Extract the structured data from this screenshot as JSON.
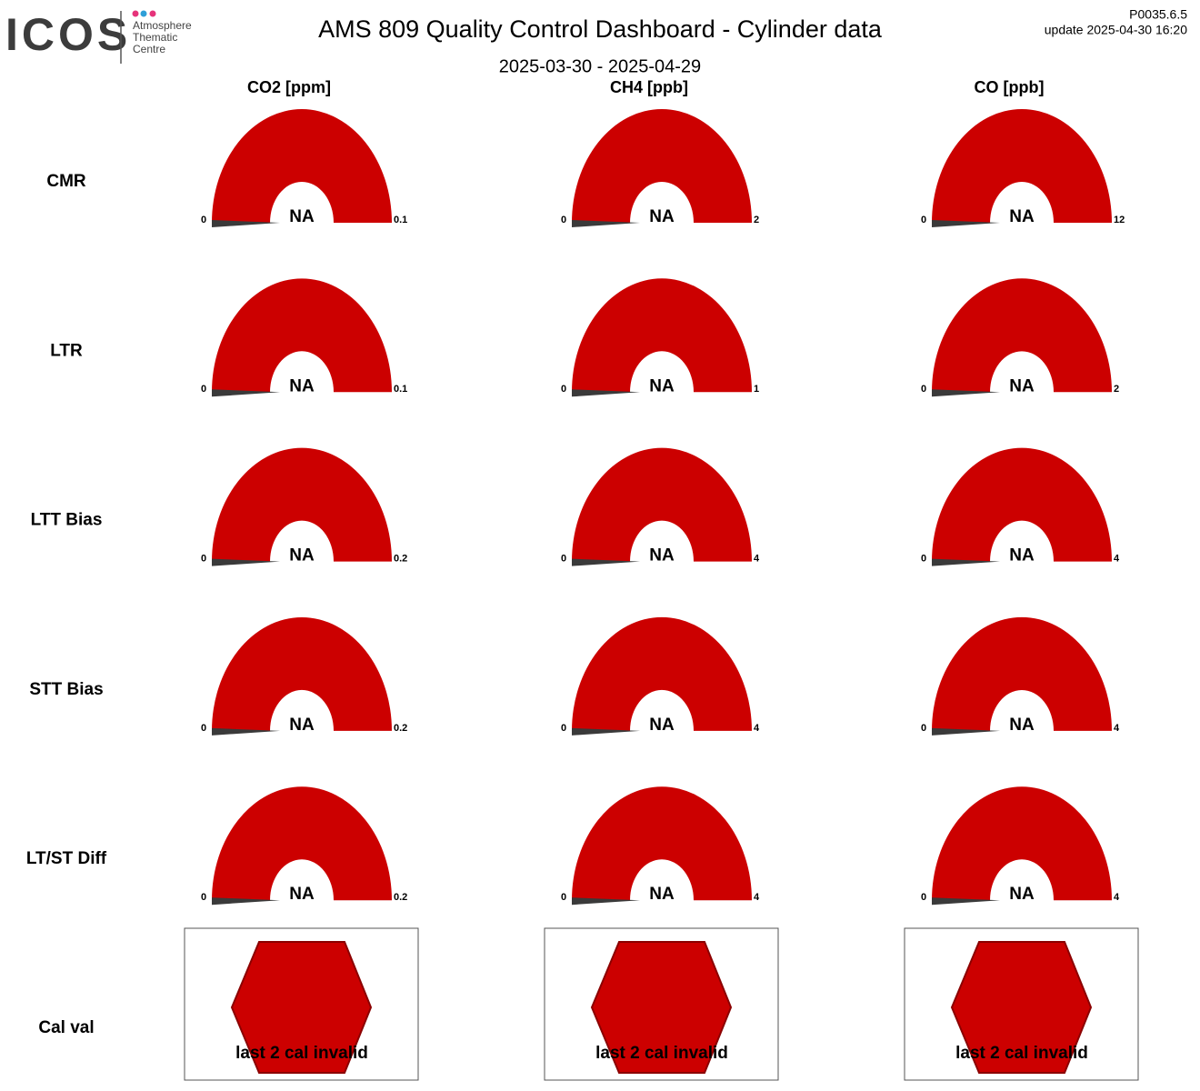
{
  "logo": {
    "name": "ICOS",
    "lines": [
      "Atmosphere",
      "Thematic",
      "Centre"
    ]
  },
  "header": {
    "title": "AMS 809 Quality Control Dashboard - Cylinder data",
    "period": "2025-03-30 - 2025-04-29",
    "version": "P0035.6.5",
    "update": "update  2025-04-30 16:20"
  },
  "columns": [
    "CO2 [ppm]",
    "CH4 [ppb]",
    "CO [ppb]"
  ],
  "rows": [
    {
      "label": "CMR",
      "gauges": [
        {
          "min": 0,
          "max": 0.1,
          "value": "NA"
        },
        {
          "min": 0,
          "max": 2,
          "value": "NA"
        },
        {
          "min": 0,
          "max": 12,
          "value": "NA"
        }
      ]
    },
    {
      "label": "LTR",
      "gauges": [
        {
          "min": 0,
          "max": 0.1,
          "value": "NA"
        },
        {
          "min": 0,
          "max": 1,
          "value": "NA"
        },
        {
          "min": 0,
          "max": 2,
          "value": "NA"
        }
      ]
    },
    {
      "label": "LTT Bias",
      "gauges": [
        {
          "min": 0,
          "max": 0.2,
          "value": "NA"
        },
        {
          "min": 0,
          "max": 4,
          "value": "NA"
        },
        {
          "min": 0,
          "max": 4,
          "value": "NA"
        }
      ]
    },
    {
      "label": "STT Bias",
      "gauges": [
        {
          "min": 0,
          "max": 0.2,
          "value": "NA"
        },
        {
          "min": 0,
          "max": 4,
          "value": "NA"
        },
        {
          "min": 0,
          "max": 4,
          "value": "NA"
        }
      ]
    },
    {
      "label": "LT/ST Diff",
      "gauges": [
        {
          "min": 0,
          "max": 0.2,
          "value": "NA"
        },
        {
          "min": 0,
          "max": 4,
          "value": "NA"
        },
        {
          "min": 0,
          "max": 4,
          "value": "NA"
        }
      ]
    }
  ],
  "cal_val": {
    "label": "Cal val",
    "cells": [
      "last 2 cal invalid",
      "last 2 cal invalid",
      "last 2 cal invalid"
    ]
  }
}
